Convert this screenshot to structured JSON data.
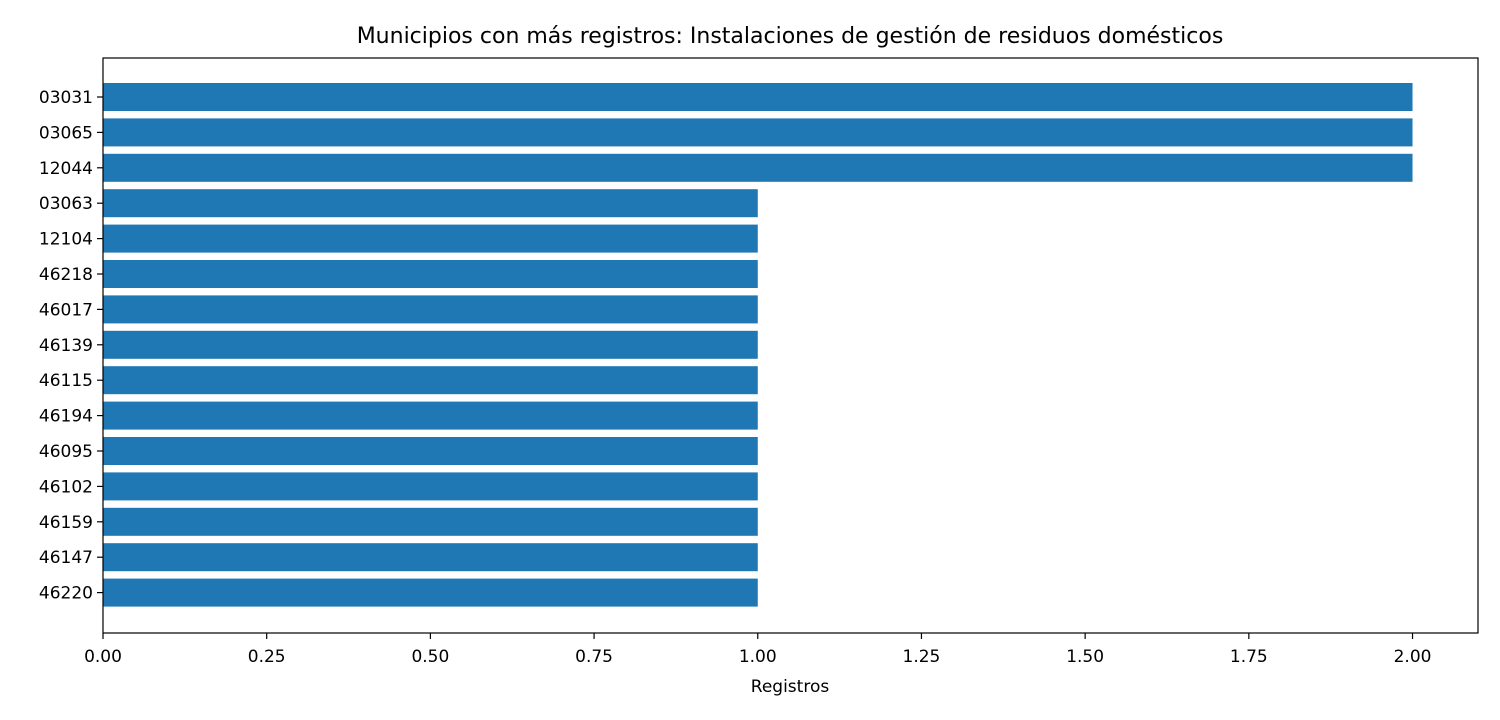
{
  "chart_data": {
    "type": "bar",
    "orientation": "horizontal",
    "title": "Municipios con más registros: Instalaciones de gestión de residuos domésticos",
    "xlabel": "Registros",
    "ylabel": "",
    "categories": [
      "03031",
      "03065",
      "12044",
      "03063",
      "12104",
      "46218",
      "46017",
      "46139",
      "46115",
      "46194",
      "46095",
      "46102",
      "46159",
      "46147",
      "46220"
    ],
    "values": [
      2,
      2,
      2,
      1,
      1,
      1,
      1,
      1,
      1,
      1,
      1,
      1,
      1,
      1,
      1
    ],
    "xlim": [
      0,
      2.1
    ],
    "xticks": [
      "0.00",
      "0.25",
      "0.50",
      "0.75",
      "1.00",
      "1.25",
      "1.50",
      "1.75",
      "2.00"
    ],
    "grid": false,
    "bar_color": "#1f77b4"
  }
}
